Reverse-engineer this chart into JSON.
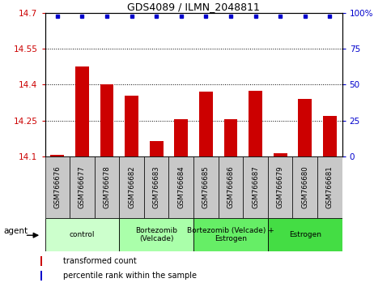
{
  "title": "GDS4089 / ILMN_2048811",
  "samples": [
    "GSM766676",
    "GSM766677",
    "GSM766678",
    "GSM766682",
    "GSM766683",
    "GSM766684",
    "GSM766685",
    "GSM766686",
    "GSM766687",
    "GSM766679",
    "GSM766680",
    "GSM766681"
  ],
  "bar_values": [
    14.105,
    14.475,
    14.4,
    14.355,
    14.165,
    14.255,
    14.37,
    14.255,
    14.375,
    14.115,
    14.34,
    14.27
  ],
  "percentile_values": [
    99,
    99,
    99,
    99,
    99,
    99,
    99,
    99,
    99,
    99,
    99,
    99
  ],
  "bar_color": "#cc0000",
  "percentile_color": "#0000cc",
  "ylim_left": [
    14.1,
    14.7
  ],
  "ylim_right": [
    0,
    100
  ],
  "yticks_left": [
    14.1,
    14.25,
    14.4,
    14.55,
    14.7
  ],
  "yticks_right": [
    0,
    25,
    50,
    75,
    100
  ],
  "ytick_labels_right": [
    "0",
    "25",
    "50",
    "75",
    "100%"
  ],
  "gridlines_at": [
    14.25,
    14.4,
    14.55
  ],
  "groups": [
    {
      "label": "control",
      "start": 0,
      "end": 3,
      "color": "#ccffcc"
    },
    {
      "label": "Bortezomib\n(Velcade)",
      "start": 3,
      "end": 6,
      "color": "#aaffaa"
    },
    {
      "label": "Bortezomib (Velcade) +\nEstrogen",
      "start": 6,
      "end": 9,
      "color": "#66ee66"
    },
    {
      "label": "Estrogen",
      "start": 9,
      "end": 12,
      "color": "#44dd44"
    }
  ],
  "agent_label": "agent",
  "legend_red_label": "transformed count",
  "legend_blue_label": "percentile rank within the sample",
  "sample_bg_color": "#c8c8c8",
  "title_fontsize": 9,
  "axis_fontsize": 7.5,
  "bar_width": 0.55
}
